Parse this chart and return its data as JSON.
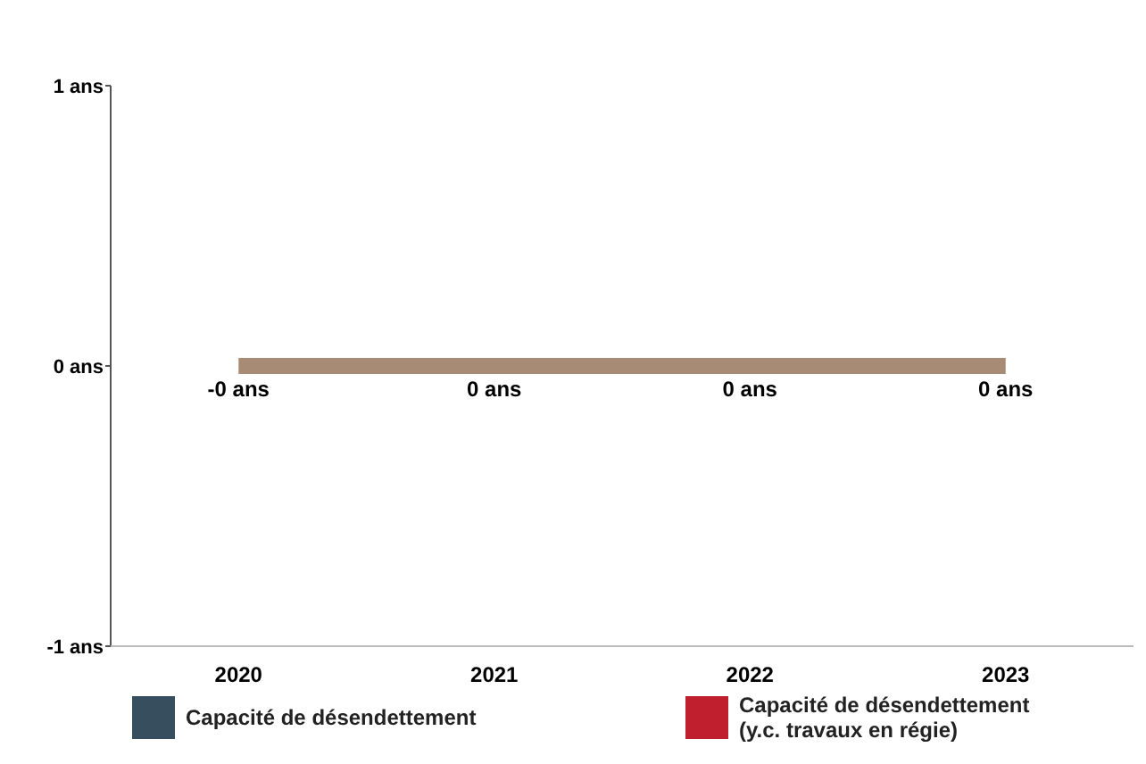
{
  "chart_data": {
    "type": "bar",
    "categories": [
      "2020",
      "2021",
      "2022",
      "2023"
    ],
    "ylim": [
      -1,
      1
    ],
    "yticks": [
      {
        "value": 1,
        "label": "1 ans"
      },
      {
        "value": 0,
        "label": "0 ans"
      },
      {
        "value": -1,
        "label": "-1 ans"
      }
    ],
    "legend": "bottom",
    "series": [
      {
        "name": "Capacité de désendettement",
        "color": "#374e5e",
        "values": [
          0,
          0,
          0,
          0
        ]
      },
      {
        "name": "Capacité de désendettement (y.c. travaux en régie)",
        "color": "#c0202e",
        "values": [
          0,
          0,
          0,
          0
        ]
      },
      {
        "type": "line",
        "color": "#a88b74",
        "values": [
          0,
          0,
          0,
          0
        ],
        "value_labels": [
          "-0 ans",
          "0 ans",
          "0 ans",
          "0 ans"
        ]
      }
    ]
  }
}
